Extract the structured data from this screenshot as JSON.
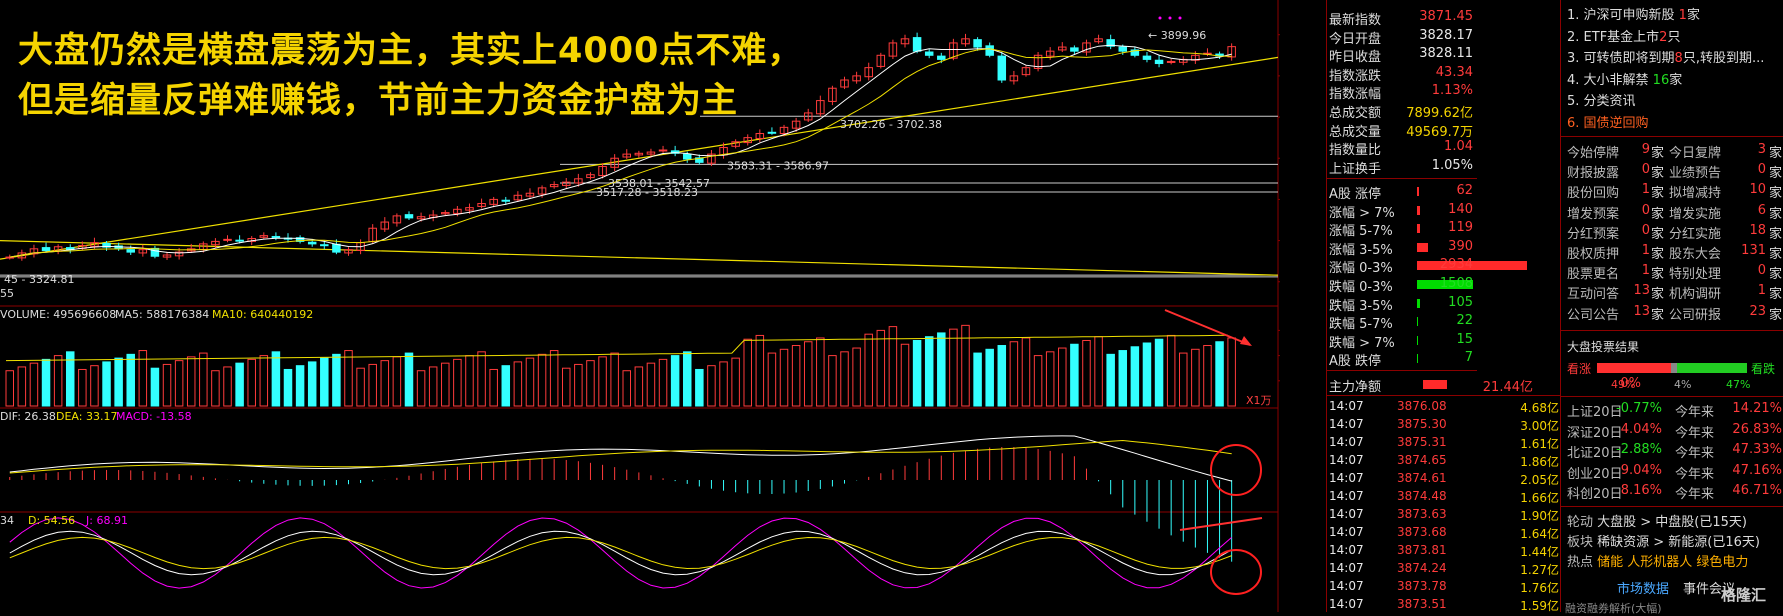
{
  "overlay": {
    "line1": "大盘仍然是横盘震荡为主，其实上4000点不难，",
    "line2": "但是缩量反弹难赚钱，节前主力资金护盘为主"
  },
  "chart_data": {
    "type": "candlestick",
    "main": {
      "ylim": [
        3280,
        3960
      ],
      "yticks": [
        "3900",
        "3800",
        "3700",
        "3600",
        "3500",
        "3400",
        "3300"
      ],
      "annotations": [
        "3899.96",
        "3702.26 - 3702.38",
        "3583.31 - 3586.97",
        "3538.01 - 3542.57",
        "3517.28 - 3518.23",
        "45 - 3324.81",
        "55"
      ],
      "closes": [
        3360,
        3370,
        3380,
        3376,
        3385,
        3378,
        3388,
        3395,
        3384,
        3380,
        3372,
        3378,
        3362,
        3365,
        3372,
        3380,
        3392,
        3398,
        3403,
        3400,
        3405,
        3412,
        3408,
        3404,
        3398,
        3392,
        3388,
        3372,
        3378,
        3395,
        3430,
        3445,
        3460,
        3455,
        3458,
        3462,
        3468,
        3476,
        3480,
        3490,
        3500,
        3496,
        3510,
        3515,
        3528,
        3536,
        3542,
        3550,
        3560,
        3580,
        3600,
        3610,
        3612,
        3615,
        3620,
        3612,
        3598,
        3590,
        3610,
        3626,
        3640,
        3650,
        3660,
        3662,
        3675,
        3690,
        3710,
        3740,
        3770,
        3790,
        3800,
        3820,
        3850,
        3880,
        3890,
        3860,
        3850,
        3840,
        3880,
        3890,
        3870,
        3850,
        3790,
        3800,
        3820,
        3850,
        3860,
        3870,
        3860,
        3880,
        3890,
        3872,
        3860,
        3850,
        3840,
        3830,
        3835,
        3840,
        3850,
        3855,
        3848,
        3871
      ]
    },
    "volume": {
      "label": "VOLUME: 495696608",
      "ma5": "MA5: 588176384",
      "ma10": "MA10: 640440192",
      "unit": "X1万",
      "yticks": [
        "90000",
        "60000",
        "30000"
      ]
    },
    "macd": {
      "dif": "DIF: 26.38",
      "dea": "DEA: 33.17",
      "macd": "MACD: -13.58",
      "yticks": [
        "50.00"
      ]
    },
    "kdj": {
      "k": "34",
      "d": "D: 54.56",
      "j": "J: 68.91",
      "yticks": [
        "100.00",
        "80.00",
        "50.00",
        "20.00"
      ]
    }
  },
  "quote": {
    "rows": [
      {
        "label": "最新指数",
        "value": "3871.45",
        "color": "red"
      },
      {
        "label": "今日开盘",
        "value": "3828.17",
        "color": "white"
      },
      {
        "label": "昨日收盘",
        "value": "3828.11",
        "color": "white"
      },
      {
        "label": "指数涨跌",
        "value": "43.34",
        "color": "red"
      },
      {
        "label": "指数涨幅",
        "value": "1.13%",
        "color": "red"
      },
      {
        "label": "总成交额",
        "value": "7899.62亿",
        "color": "yellow"
      },
      {
        "label": "总成交量",
        "value": "49569.7万",
        "color": "yellow"
      },
      {
        "label": "指数量比",
        "value": "1.04",
        "color": "red"
      },
      {
        "label": "上证换手",
        "value": "1.05%",
        "color": "white"
      }
    ],
    "dist": [
      {
        "label": "A股 涨停",
        "value": "62",
        "color": "red",
        "ratio": 0.02
      },
      {
        "label": "涨幅 > 7%",
        "value": "140",
        "color": "red",
        "ratio": 0.03
      },
      {
        "label": "涨幅 5-7%",
        "value": "119",
        "color": "red",
        "ratio": 0.03
      },
      {
        "label": "涨幅 3-5%",
        "value": "390",
        "color": "red",
        "ratio": 0.1
      },
      {
        "label": "涨幅 0-3%",
        "value": "2934",
        "color": "red",
        "ratio": 1.0
      },
      {
        "label": "跌幅 0-3%",
        "value": "1508",
        "color": "green",
        "ratio": 0.51
      },
      {
        "label": "跌幅 3-5%",
        "value": "105",
        "color": "green",
        "ratio": 0.03
      },
      {
        "label": "跌幅 5-7%",
        "value": "22",
        "color": "green",
        "ratio": 0.01
      },
      {
        "label": "跌幅 > 7%",
        "value": "15",
        "color": "green",
        "ratio": 0.01
      },
      {
        "label": "A股 跌停",
        "value": "7",
        "color": "green",
        "ratio": 0.005
      }
    ],
    "netflow": {
      "label": "主力净额",
      "value": "21.44亿",
      "pct": "0%"
    },
    "ticks": [
      {
        "time": "14:07",
        "price": "3876.08",
        "amount": "4.68亿"
      },
      {
        "time": "14:07",
        "price": "3875.30",
        "amount": "3.00亿"
      },
      {
        "time": "14:07",
        "price": "3875.31",
        "amount": "1.61亿"
      },
      {
        "time": "14:07",
        "price": "3874.65",
        "amount": "1.86亿"
      },
      {
        "time": "14:07",
        "price": "3874.61",
        "amount": "2.05亿"
      },
      {
        "time": "14:07",
        "price": "3874.48",
        "amount": "1.66亿"
      },
      {
        "time": "14:07",
        "price": "3873.63",
        "amount": "1.90亿"
      },
      {
        "time": "14:07",
        "price": "3873.68",
        "amount": "1.64亿"
      },
      {
        "time": "14:07",
        "price": "3873.81",
        "amount": "1.44亿"
      },
      {
        "time": "14:07",
        "price": "3874.24",
        "amount": "1.27亿"
      },
      {
        "time": "14:07",
        "price": "3873.78",
        "amount": "1.76亿"
      },
      {
        "time": "14:07",
        "price": "3873.51",
        "amount": "1.59亿"
      }
    ]
  },
  "info": {
    "news": [
      {
        "text": "1. 沪深可申购新股 ",
        "num": "1",
        "suffix": "家"
      },
      {
        "text": "2. ETF基金上市",
        "num": "2",
        "suffix": "只"
      },
      {
        "text": "3. 可转债即将到期",
        "num": "8",
        "suffix": "只,转股到期..."
      },
      {
        "text": "4. 大小非解禁 ",
        "num": "16",
        "suffix": "家"
      },
      {
        "text": "5. 分类资讯",
        "num": "",
        "suffix": ""
      },
      {
        "text": "6. 国债逆回购",
        "num": "",
        "suffix": ""
      }
    ],
    "stats": [
      {
        "l1": "今始停牌",
        "v1": "9",
        "l2": "今日复牌",
        "v2": "3"
      },
      {
        "l1": "财报披露",
        "v1": "0",
        "l2": "业绩预告",
        "v2": "0"
      },
      {
        "l1": "股份回购",
        "v1": "1",
        "l2": "拟增减持",
        "v2": "10"
      },
      {
        "l1": "增发预案",
        "v1": "0",
        "l2": "增发实施",
        "v2": "6"
      },
      {
        "l1": "分红预案",
        "v1": "0",
        "l2": "分红实施",
        "v2": "18"
      },
      {
        "l1": "股权质押",
        "v1": "1",
        "l2": "股东大会",
        "v2": "131"
      },
      {
        "l1": "股票更名",
        "v1": "1",
        "l2": "特别处理",
        "v2": "0"
      },
      {
        "l1": "互动问答",
        "v1": "13",
        "l2": "机构调研",
        "v2": "1"
      },
      {
        "l1": "公司公告",
        "v1": "13",
        "l2": "公司研报",
        "v2": "23"
      }
    ],
    "stat_unit": "家",
    "vote": {
      "title": "大盘投票结果",
      "up": "看涨",
      "down": "看跌",
      "up_pct": "49%",
      "flat_pct": "4%",
      "down_pct": "47%",
      "up_ratio": 0.49,
      "flat_ratio": 0.04,
      "down_ratio": 0.47
    },
    "indices": [
      {
        "name": "上证20日",
        "v20": "-0.77%",
        "ytd_label": "今年来",
        "ytd": "14.21%"
      },
      {
        "name": "深证20日",
        "v20": "4.04%",
        "ytd_label": "今年来",
        "ytd": "26.83%"
      },
      {
        "name": "北证20日",
        "v20": "-2.88%",
        "ytd_label": "今年来",
        "ytd": "47.33%"
      },
      {
        "name": "创业20日",
        "v20": "9.04%",
        "ytd_label": "今年来",
        "ytd": "47.16%"
      },
      {
        "name": "科创20日",
        "v20": "8.16%",
        "ytd_label": "今年来",
        "ytd": "46.71%"
      }
    ],
    "rotation": [
      {
        "label": "轮动",
        "text": "大盘股 > 中盘股(已15天)"
      },
      {
        "label": "板块",
        "text": "稀缺资源 > 新能源(已16天)"
      }
    ],
    "hot_label": "热点",
    "hot_items": [
      "储能",
      "人形机器人",
      "绿色电力"
    ],
    "footer_links": [
      "市场数据",
      "事件会议"
    ],
    "footer_more": "融资融券解析(大幅)",
    "logo": "格隆汇"
  },
  "colors": {
    "up": "#ff3b3b",
    "down": "#33ffff",
    "ma_white": "#ffffff",
    "ma_yellow": "#f0e000",
    "grid": "#8b0000",
    "magenta": "#ff00ff"
  }
}
